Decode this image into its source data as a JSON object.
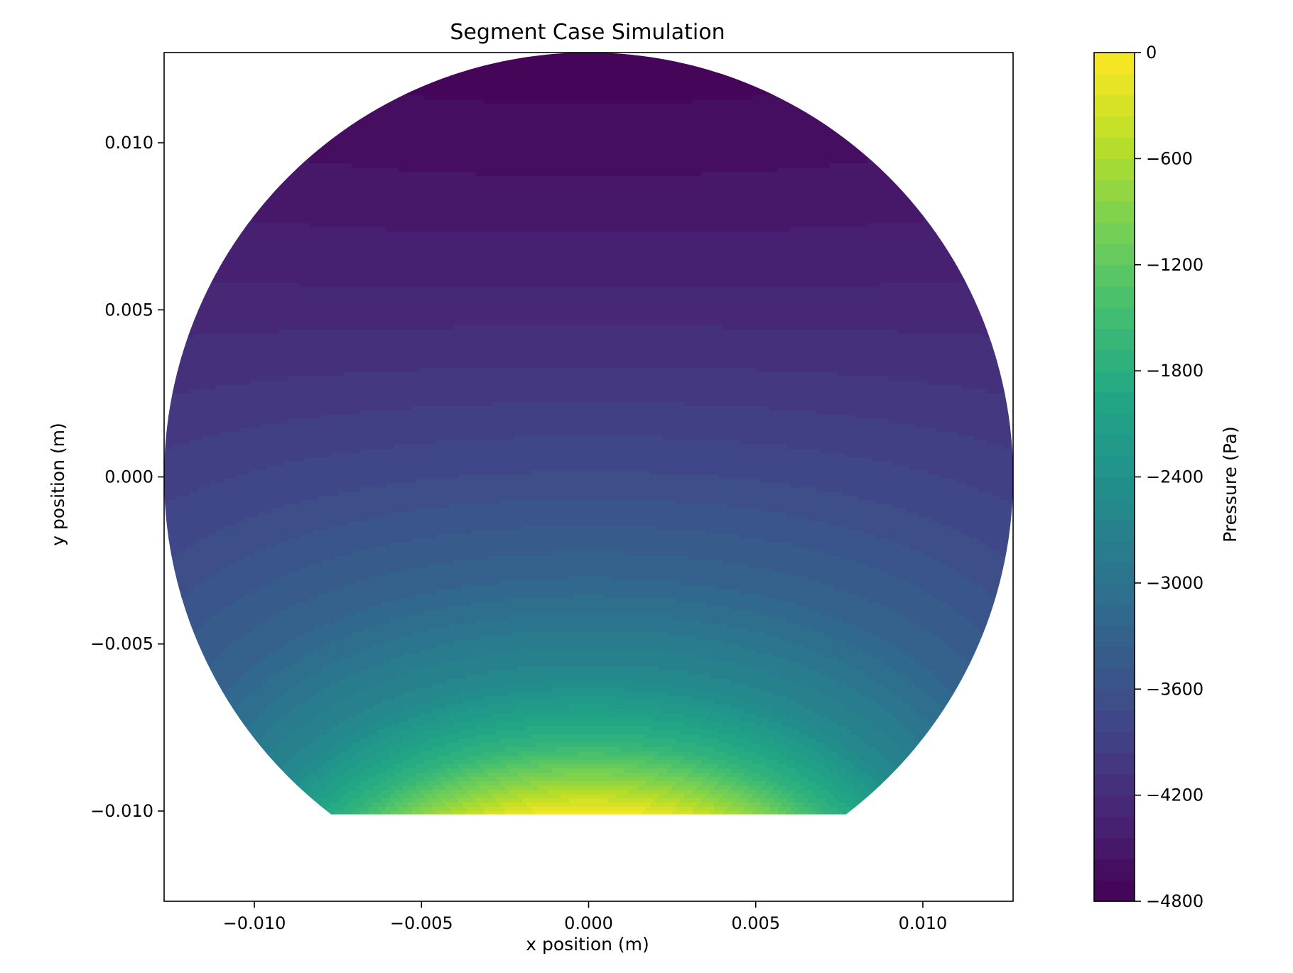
{
  "chart_data": {
    "type": "heatmap",
    "title": "Segment Case Simulation",
    "xlabel": "x position (m)",
    "ylabel": "y position (m)",
    "xlim": [
      -0.0127,
      0.0127
    ],
    "ylim": [
      -0.0127,
      0.0127
    ],
    "xticks": [
      -0.01,
      -0.005,
      0.0,
      0.005,
      0.01
    ],
    "xtick_labels": [
      "−0.010",
      "−0.005",
      "0.000",
      "0.005",
      "0.010"
    ],
    "yticks": [
      -0.01,
      -0.005,
      0.0,
      0.005,
      0.01
    ],
    "ytick_labels": [
      "−0.010",
      "−0.005",
      "0.000",
      "0.005",
      "0.010"
    ],
    "domain": {
      "shape": "circular segment",
      "radius": 0.0127,
      "center": [
        0,
        0
      ],
      "cut_y": -0.0101
    },
    "field": {
      "quantity": "Pressure",
      "min": -4800,
      "max": 0,
      "levels": 40,
      "samples": [
        {
          "x": 0.0,
          "y": 0.0115,
          "value": -4700
        },
        {
          "x": 0.0,
          "y": 0.009,
          "value": -4560
        },
        {
          "x": 0.0,
          "y": 0.006,
          "value": -4350
        },
        {
          "x": 0.0,
          "y": 0.003,
          "value": -4050
        },
        {
          "x": 0.0,
          "y": 0.0,
          "value": -3700
        },
        {
          "x": 0.0,
          "y": -0.003,
          "value": -3250
        },
        {
          "x": 0.0,
          "y": -0.006,
          "value": -2550
        },
        {
          "x": 0.0,
          "y": -0.008,
          "value": -1650
        },
        {
          "x": 0.0,
          "y": -0.0095,
          "value": -500
        },
        {
          "x": 0.0,
          "y": -0.0101,
          "value": 0
        }
      ]
    },
    "colorbar": {
      "label": "Pressure (Pa)",
      "colormap": "viridis",
      "ticks": [
        0,
        -600,
        -1200,
        -1800,
        -2400,
        -3000,
        -3600,
        -4200,
        -4800
      ],
      "tick_labels": [
        "0",
        "−600",
        "−1200",
        "−1800",
        "−2400",
        "−3000",
        "−3600",
        "−4200",
        "−4800"
      ]
    },
    "grid": false
  }
}
